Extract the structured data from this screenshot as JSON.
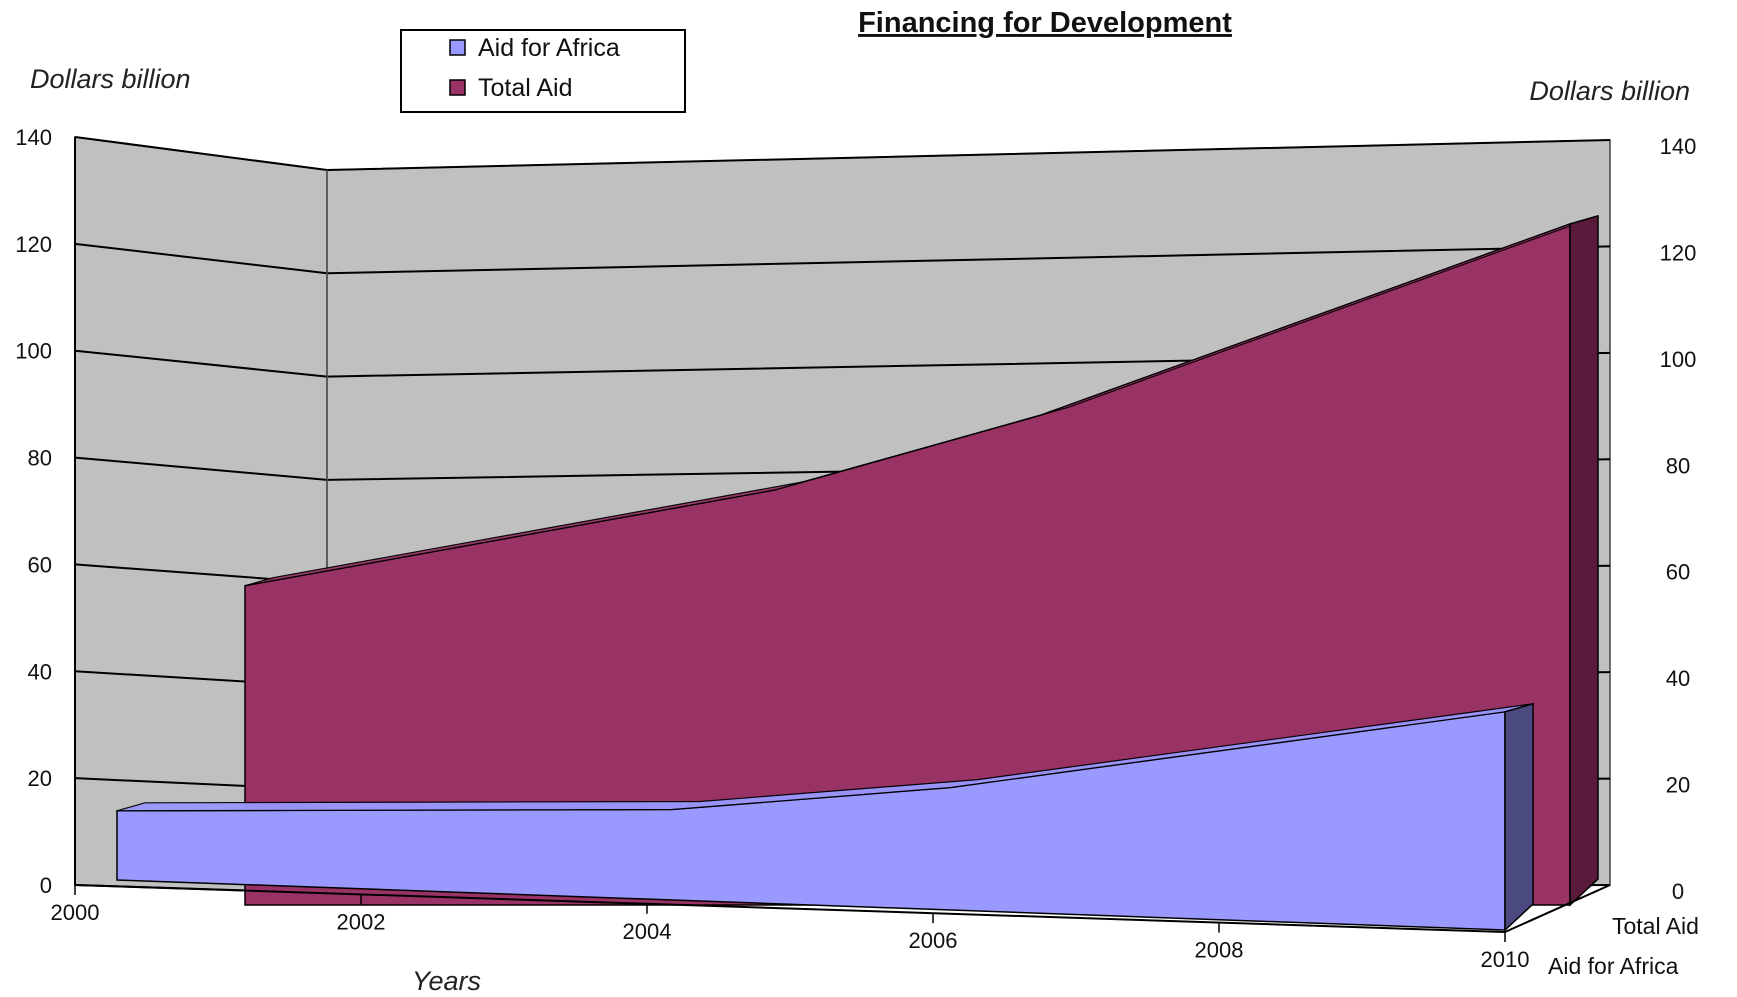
{
  "chart_data": {
    "type": "area",
    "title": "Financing for Development",
    "xlabel": "Years",
    "ylabel_left": "Dollars billion",
    "ylabel_right": "Dollars billion",
    "x_ticks": [
      "2000",
      "2002",
      "2004",
      "2006",
      "2008",
      "2010"
    ],
    "y_ticks": [
      "0",
      "20",
      "40",
      "60",
      "80",
      "100",
      "120",
      "140"
    ],
    "ylim": [
      0,
      140
    ],
    "xlim": [
      2000,
      2010
    ],
    "grid": true,
    "view": "3d",
    "legend_position": "top-left",
    "depth_labels": [
      "Total Aid",
      "Aid for Africa"
    ],
    "series": [
      {
        "name": "Aid for Africa",
        "color": "#9999ff",
        "side_color": "#4a4a80",
        "x": [
          2000,
          2004,
          2006,
          2008,
          2010
        ],
        "values": [
          13,
          17,
          23,
          32,
          41
        ]
      },
      {
        "name": "Total Aid",
        "color": "#993366",
        "side_color": "#5a1a3c",
        "x": [
          2000,
          2004,
          2006,
          2008,
          2010
        ],
        "values": [
          60,
          78,
          92,
          110,
          128
        ]
      }
    ],
    "colors": {
      "wall": "#c0c0c0",
      "gridline": "#000000"
    }
  }
}
